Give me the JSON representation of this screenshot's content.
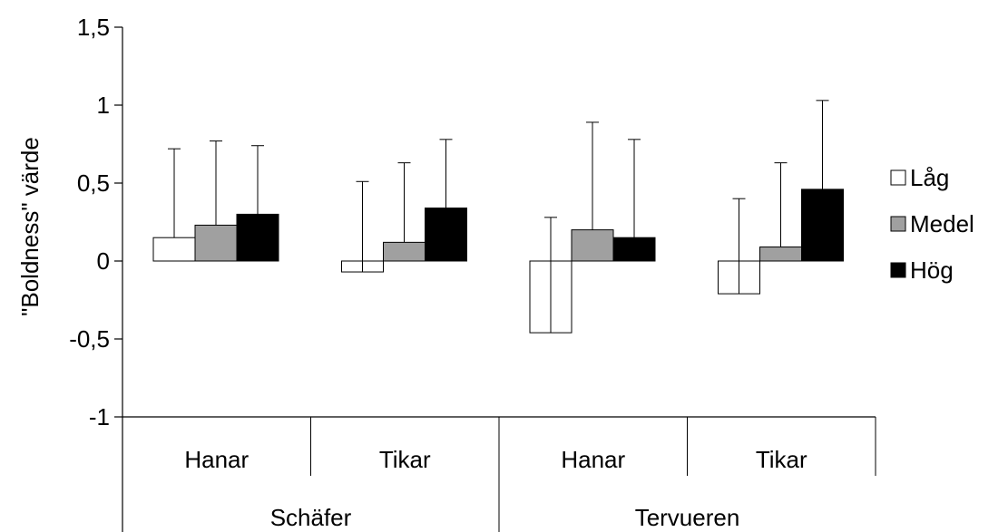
{
  "chart_data": {
    "type": "bar",
    "ylabel": "\"Boldness\" värde",
    "ylim": [
      -1,
      1.5
    ],
    "yticks": [
      {
        "value": 1.5,
        "label": "1,5"
      },
      {
        "value": 1,
        "label": "1"
      },
      {
        "value": 0.5,
        "label": "0,5"
      },
      {
        "value": 0,
        "label": "0"
      },
      {
        "value": -0.5,
        "label": "-0,5"
      },
      {
        "value": -1,
        "label": "-1"
      }
    ],
    "categories": [
      "Hanar",
      "Tikar",
      "Hanar",
      "Tikar"
    ],
    "groups": [
      {
        "label": "Schäfer",
        "span": [
          0,
          1
        ]
      },
      {
        "label": "Tervueren",
        "span": [
          2,
          3
        ]
      }
    ],
    "series": [
      {
        "name": "Låg",
        "color": "#ffffff",
        "values": [
          0.15,
          -0.07,
          -0.46,
          -0.21
        ],
        "errors": [
          0.57,
          0.58,
          0.74,
          0.61
        ]
      },
      {
        "name": "Medel",
        "color": "#a0a0a0",
        "values": [
          0.23,
          0.12,
          0.2,
          0.09
        ],
        "errors": [
          0.54,
          0.51,
          0.69,
          0.54
        ]
      },
      {
        "name": "Hög",
        "color": "#000000",
        "values": [
          0.3,
          0.34,
          0.15,
          0.46
        ],
        "errors": [
          0.44,
          0.44,
          0.63,
          0.57
        ]
      }
    ],
    "legend_position": "right",
    "grid": false,
    "error_bars": "upper"
  }
}
